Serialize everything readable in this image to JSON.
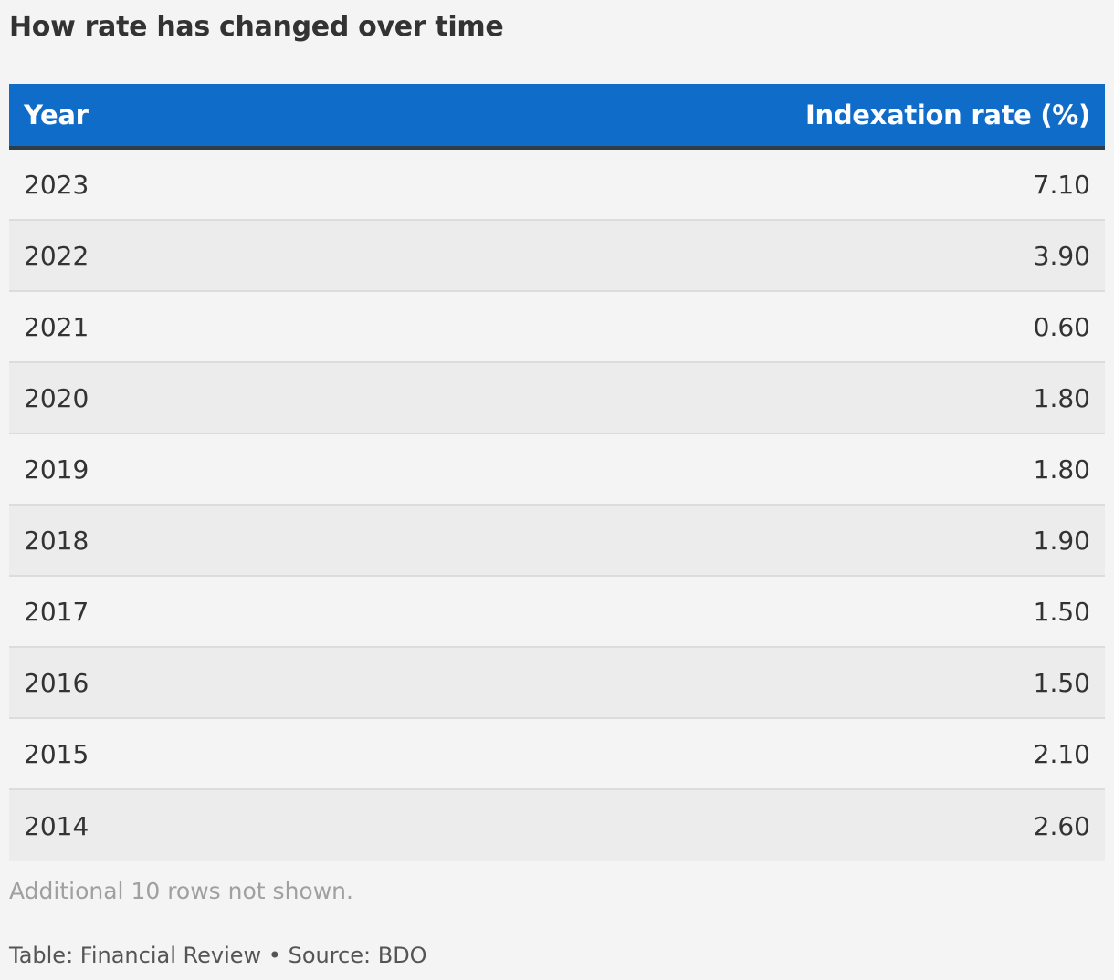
{
  "title": "How rate has changed over time",
  "note": "Additional 10 rows not shown.",
  "footer": {
    "table_credit": "Table: Financial Review",
    "separator": "•",
    "source": "Source: BDO"
  },
  "colors": {
    "header_background": "#0f6cc9",
    "header_text": "#ffffff",
    "header_rule": "#2e3d4a",
    "row_odd": "#f4f4f4",
    "row_even": "#ececec"
  },
  "chart_data": {
    "type": "table",
    "columns": [
      "Year",
      "Indexation rate (%)"
    ],
    "rows": [
      [
        "2023",
        "7.10"
      ],
      [
        "2022",
        "3.90"
      ],
      [
        "2021",
        "0.60"
      ],
      [
        "2020",
        "1.80"
      ],
      [
        "2019",
        "1.80"
      ],
      [
        "2018",
        "1.90"
      ],
      [
        "2017",
        "1.50"
      ],
      [
        "2016",
        "1.50"
      ],
      [
        "2015",
        "2.10"
      ],
      [
        "2014",
        "2.60"
      ]
    ]
  }
}
